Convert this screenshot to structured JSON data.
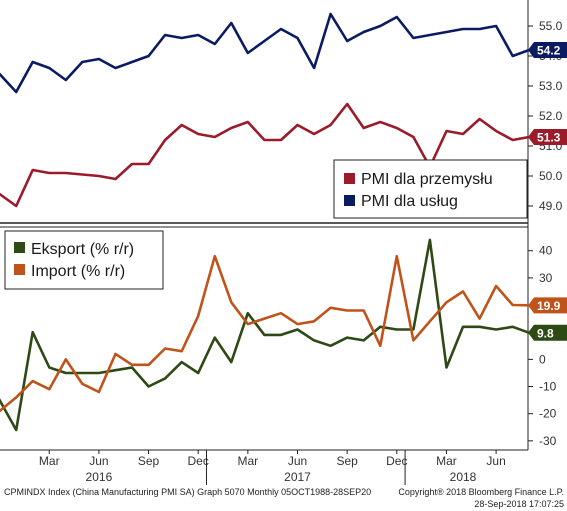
{
  "chart_data": [
    {
      "type": "line",
      "panel": "top",
      "y_ticks": [
        "55.0",
        "54.0",
        "53.0",
        "52.0",
        "51.0",
        "50.0",
        "49.0"
      ],
      "y_tick_values": [
        55,
        54,
        53,
        52,
        51,
        50,
        49
      ],
      "ylim": [
        48.6,
        55.8
      ],
      "grid": false,
      "legend_placement": "bottom-right",
      "series": [
        {
          "name": "PMI dla przemysłu",
          "color": "#9b1b2a",
          "last_value_label": "51.3",
          "points": [
            [
              "2015-11",
              49.6
            ],
            [
              "2015-12",
              49.4
            ],
            [
              "2016-01",
              49.0
            ],
            [
              "2016-02",
              50.2
            ],
            [
              "2016-03",
              50.1
            ],
            [
              "2016-04",
              50.1
            ],
            [
              "2016-05",
              50.05
            ],
            [
              "2016-06",
              50.0
            ],
            [
              "2016-07",
              49.9
            ],
            [
              "2016-08",
              50.4
            ],
            [
              "2016-09",
              50.4
            ],
            [
              "2016-10",
              51.2
            ],
            [
              "2016-11",
              51.7
            ],
            [
              "2016-12",
              51.4
            ],
            [
              "2017-01",
              51.3
            ],
            [
              "2017-02",
              51.6
            ],
            [
              "2017-03",
              51.8
            ],
            [
              "2017-04",
              51.2
            ],
            [
              "2017-05",
              51.2
            ],
            [
              "2017-06",
              51.7
            ],
            [
              "2017-07",
              51.4
            ],
            [
              "2017-08",
              51.7
            ],
            [
              "2017-09",
              52.4
            ],
            [
              "2017-10",
              51.6
            ],
            [
              "2017-11",
              51.8
            ],
            [
              "2017-12",
              51.6
            ],
            [
              "2018-01",
              51.3
            ],
            [
              "2018-02",
              50.3
            ],
            [
              "2018-03",
              51.5
            ],
            [
              "2018-04",
              51.4
            ],
            [
              "2018-05",
              51.9
            ],
            [
              "2018-06",
              51.5
            ],
            [
              "2018-07",
              51.2
            ],
            [
              "2018-08",
              51.3
            ]
          ]
        },
        {
          "name": "PMI dla usług",
          "color": "#0b1b62",
          "last_value_label": "54.2",
          "points": [
            [
              "2015-11",
              53.9
            ],
            [
              "2015-12",
              53.4
            ],
            [
              "2016-01",
              52.8
            ],
            [
              "2016-02",
              53.8
            ],
            [
              "2016-03",
              53.6
            ],
            [
              "2016-04",
              53.2
            ],
            [
              "2016-05",
              53.8
            ],
            [
              "2016-06",
              53.9
            ],
            [
              "2016-07",
              53.6
            ],
            [
              "2016-08",
              53.8
            ],
            [
              "2016-09",
              54.0
            ],
            [
              "2016-10",
              54.7
            ],
            [
              "2016-11",
              54.6
            ],
            [
              "2016-12",
              54.7
            ],
            [
              "2017-01",
              54.4
            ],
            [
              "2017-02",
              55.1
            ],
            [
              "2017-03",
              54.1
            ],
            [
              "2017-04",
              54.5
            ],
            [
              "2017-05",
              54.9
            ],
            [
              "2017-06",
              54.6
            ],
            [
              "2017-07",
              53.6
            ],
            [
              "2017-08",
              55.4
            ],
            [
              "2017-09",
              54.5
            ],
            [
              "2017-10",
              54.8
            ],
            [
              "2017-11",
              55.0
            ],
            [
              "2017-12",
              55.3
            ],
            [
              "2018-01",
              54.6
            ],
            [
              "2018-02",
              54.7
            ],
            [
              "2018-03",
              54.8
            ],
            [
              "2018-04",
              54.9
            ],
            [
              "2018-05",
              54.9
            ],
            [
              "2018-06",
              55.0
            ],
            [
              "2018-07",
              54.0
            ],
            [
              "2018-08",
              54.2
            ]
          ]
        }
      ]
    },
    {
      "type": "line",
      "panel": "bottom",
      "y_ticks": [
        "40",
        "30",
        "20",
        "10",
        "0",
        "-10",
        "-20",
        "-30"
      ],
      "y_tick_values": [
        40,
        30,
        20,
        10,
        0,
        -10,
        -20,
        -30
      ],
      "ylim": [
        -33,
        48
      ],
      "grid": false,
      "legend_placement": "top-left",
      "series": [
        {
          "name": "Eksport (% r/r)",
          "color": "#2e4a14",
          "last_value_label": "9.8",
          "points": [
            [
              "2015-11",
              -5
            ],
            [
              "2015-12",
              -15
            ],
            [
              "2016-01",
              -26
            ],
            [
              "2016-02",
              10
            ],
            [
              "2016-03",
              -3
            ],
            [
              "2016-04",
              -5
            ],
            [
              "2016-05",
              -5
            ],
            [
              "2016-06",
              -5
            ],
            [
              "2016-07",
              -4
            ],
            [
              "2016-08",
              -3
            ],
            [
              "2016-09",
              -10
            ],
            [
              "2016-10",
              -7
            ],
            [
              "2016-11",
              -1
            ],
            [
              "2016-12",
              -5
            ],
            [
              "2017-01",
              8
            ],
            [
              "2017-02",
              -1
            ],
            [
              "2017-03",
              17
            ],
            [
              "2017-04",
              9
            ],
            [
              "2017-05",
              9
            ],
            [
              "2017-06",
              11
            ],
            [
              "2017-07",
              7
            ],
            [
              "2017-08",
              5
            ],
            [
              "2017-09",
              8
            ],
            [
              "2017-10",
              7
            ],
            [
              "2017-11",
              12
            ],
            [
              "2017-12",
              11
            ],
            [
              "2018-01",
              11
            ],
            [
              "2018-02",
              44
            ],
            [
              "2018-03",
              -3
            ],
            [
              "2018-04",
              12
            ],
            [
              "2018-05",
              12
            ],
            [
              "2018-06",
              11
            ],
            [
              "2018-07",
              12
            ],
            [
              "2018-08",
              9.8
            ]
          ]
        },
        {
          "name": "Import (% r/r)",
          "color": "#c0531a",
          "last_value_label": "19.9",
          "points": [
            [
              "2015-11",
              -14
            ],
            [
              "2015-12",
              -19
            ],
            [
              "2016-01",
              -14
            ],
            [
              "2016-02",
              -8
            ],
            [
              "2016-03",
              -11
            ],
            [
              "2016-04",
              0
            ],
            [
              "2016-05",
              -9
            ],
            [
              "2016-06",
              -12
            ],
            [
              "2016-07",
              2
            ],
            [
              "2016-08",
              -2
            ],
            [
              "2016-09",
              -2
            ],
            [
              "2016-10",
              4
            ],
            [
              "2016-11",
              3
            ],
            [
              "2016-12",
              16
            ],
            [
              "2017-01",
              38
            ],
            [
              "2017-02",
              21
            ],
            [
              "2017-03",
              13
            ],
            [
              "2017-04",
              15
            ],
            [
              "2017-05",
              17
            ],
            [
              "2017-06",
              13
            ],
            [
              "2017-07",
              14
            ],
            [
              "2017-08",
              19
            ],
            [
              "2017-09",
              18
            ],
            [
              "2017-10",
              18
            ],
            [
              "2017-11",
              5
            ],
            [
              "2017-12",
              38
            ],
            [
              "2018-01",
              7
            ],
            [
              "2018-02",
              14
            ],
            [
              "2018-03",
              21
            ],
            [
              "2018-04",
              25
            ],
            [
              "2018-05",
              15
            ],
            [
              "2018-06",
              27
            ],
            [
              "2018-07",
              20
            ],
            [
              "2018-08",
              19.9
            ]
          ]
        }
      ]
    }
  ],
  "x_axis": {
    "month_labels": [
      {
        "label": "Mar",
        "date": "2016-03"
      },
      {
        "label": "Jun",
        "date": "2016-06"
      },
      {
        "label": "Sep",
        "date": "2016-09"
      },
      {
        "label": "Dec",
        "date": "2016-12"
      },
      {
        "label": "Mar",
        "date": "2017-03"
      },
      {
        "label": "Jun",
        "date": "2017-06"
      },
      {
        "label": "Sep",
        "date": "2017-09"
      },
      {
        "label": "Dec",
        "date": "2017-12"
      },
      {
        "label": "Mar",
        "date": "2018-03"
      },
      {
        "label": "Jun",
        "date": "2018-06"
      }
    ],
    "year_labels": [
      {
        "label": "2016",
        "date": "2016-06"
      },
      {
        "label": "2017",
        "date": "2017-06"
      },
      {
        "label": "2018",
        "date": "2018-04"
      }
    ]
  },
  "footer": {
    "left": "CPMINDX Index (China Manufacturing PMI SA) Graph 5070  Monthly 05OCT1988-28SEP20",
    "right": "Copyright® 2018 Bloomberg Finance L.P.",
    "timestamp": "28-Sep-2018 17:07:25"
  }
}
